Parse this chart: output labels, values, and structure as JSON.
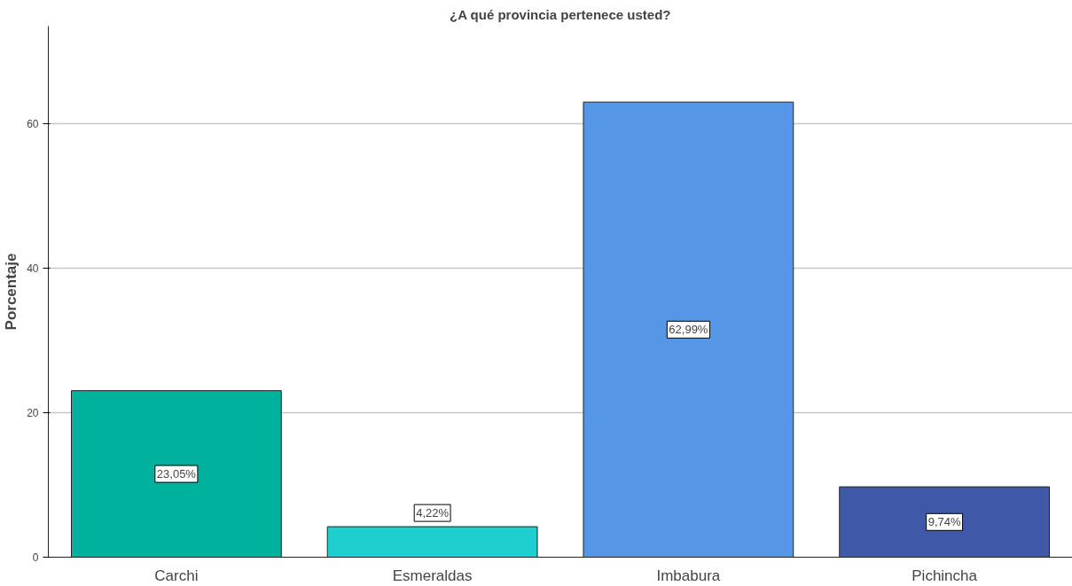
{
  "chart_data": {
    "type": "bar",
    "title": "¿A qué provincia pertenece usted?",
    "ylabel": "Porcentaje",
    "categories": [
      "Carchi",
      "Esmeraldas",
      "Imbabura",
      "Pichincha"
    ],
    "values": [
      23.05,
      4.22,
      62.99,
      9.74
    ],
    "colors": [
      "#00b19d",
      "#1fcfcf",
      "#5596e6",
      "#3f59a8"
    ],
    "value_labels": [
      "23,05%",
      "4,22%",
      "62,99%",
      "9,74%"
    ],
    "ylim": [
      0,
      73.5
    ],
    "yticks": [
      0,
      20,
      40,
      60
    ],
    "grid": "y"
  }
}
